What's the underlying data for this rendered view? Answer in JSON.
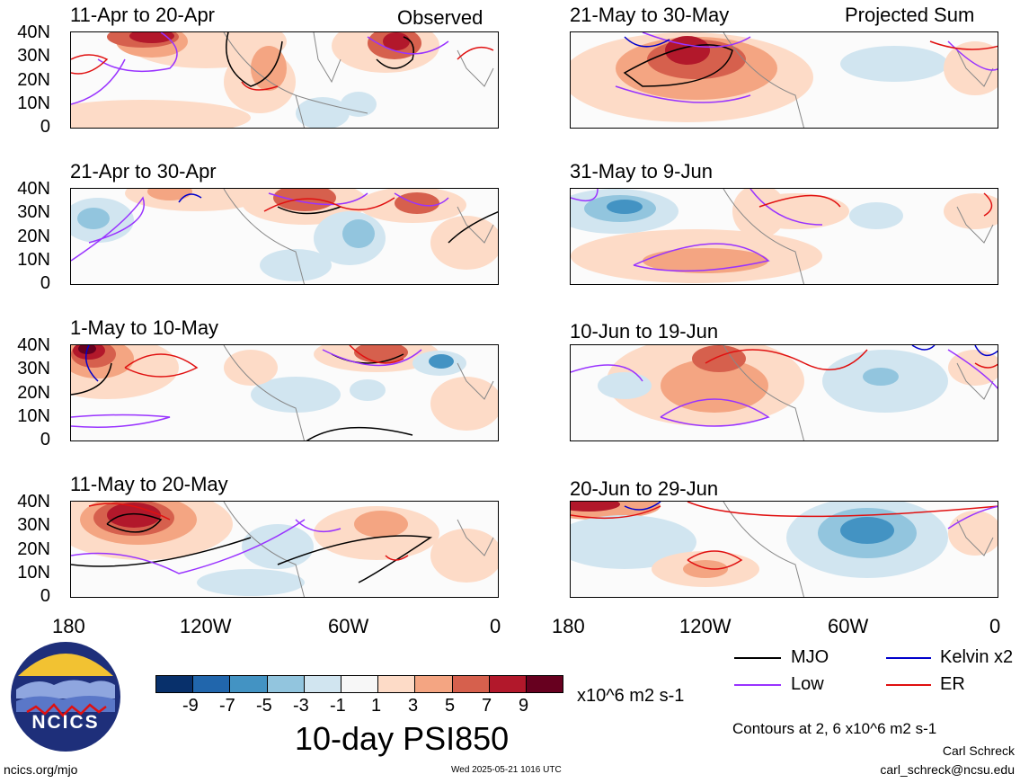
{
  "main_title": "10-day PSI850",
  "column_headers": {
    "left": "Observed",
    "right": "Projected Sum"
  },
  "panels": [
    {
      "label": "11-Apr to 20-Apr",
      "column": "Observed"
    },
    {
      "label": "21-Apr to 30-Apr",
      "column": "Observed"
    },
    {
      "label": "1-May to 10-May",
      "column": "Observed"
    },
    {
      "label": "11-May to 20-May",
      "column": "Observed"
    },
    {
      "label": "21-May to 30-May",
      "column": "Projected Sum"
    },
    {
      "label": "31-May to 9-Jun",
      "column": "Projected Sum"
    },
    {
      "label": "10-Jun to 19-Jun",
      "column": "Projected Sum"
    },
    {
      "label": "20-Jun to 29-Jun",
      "column": "Projected Sum"
    }
  ],
  "lat_labels": [
    "40N",
    "30N",
    "20N",
    "10N",
    "0"
  ],
  "lon_labels": [
    "180",
    "120W",
    "60W",
    "0"
  ],
  "colorbar": {
    "tick_labels": [
      "-9",
      "-7",
      "-5",
      "-3",
      "-1",
      "1",
      "3",
      "5",
      "7",
      "9"
    ],
    "colors": [
      "#08306b",
      "#2166ac",
      "#4393c3",
      "#92c5de",
      "#d1e5f0",
      "#f7f7f7",
      "#fddbc7",
      "#f4a582",
      "#d6604d",
      "#b2182b",
      "#67001f"
    ],
    "units": "x10^6 m2 s-1"
  },
  "legend": [
    {
      "label": "MJO",
      "color": "#000000"
    },
    {
      "label": "Kelvin x2",
      "color": "#0000cc"
    },
    {
      "label": "Low",
      "color": "#9933ff"
    },
    {
      "label": "ER",
      "color": "#e01010"
    }
  ],
  "contour_note": "Contours at 2, 6 x10^6 m2 s-1",
  "author": "Carl Schreck",
  "email": "carl_schreck@ncsu.edu",
  "site": "ncics.org/mjo",
  "timestamp": "Wed 2025-05-21 1016 UTC",
  "logo_text": "NCICS"
}
